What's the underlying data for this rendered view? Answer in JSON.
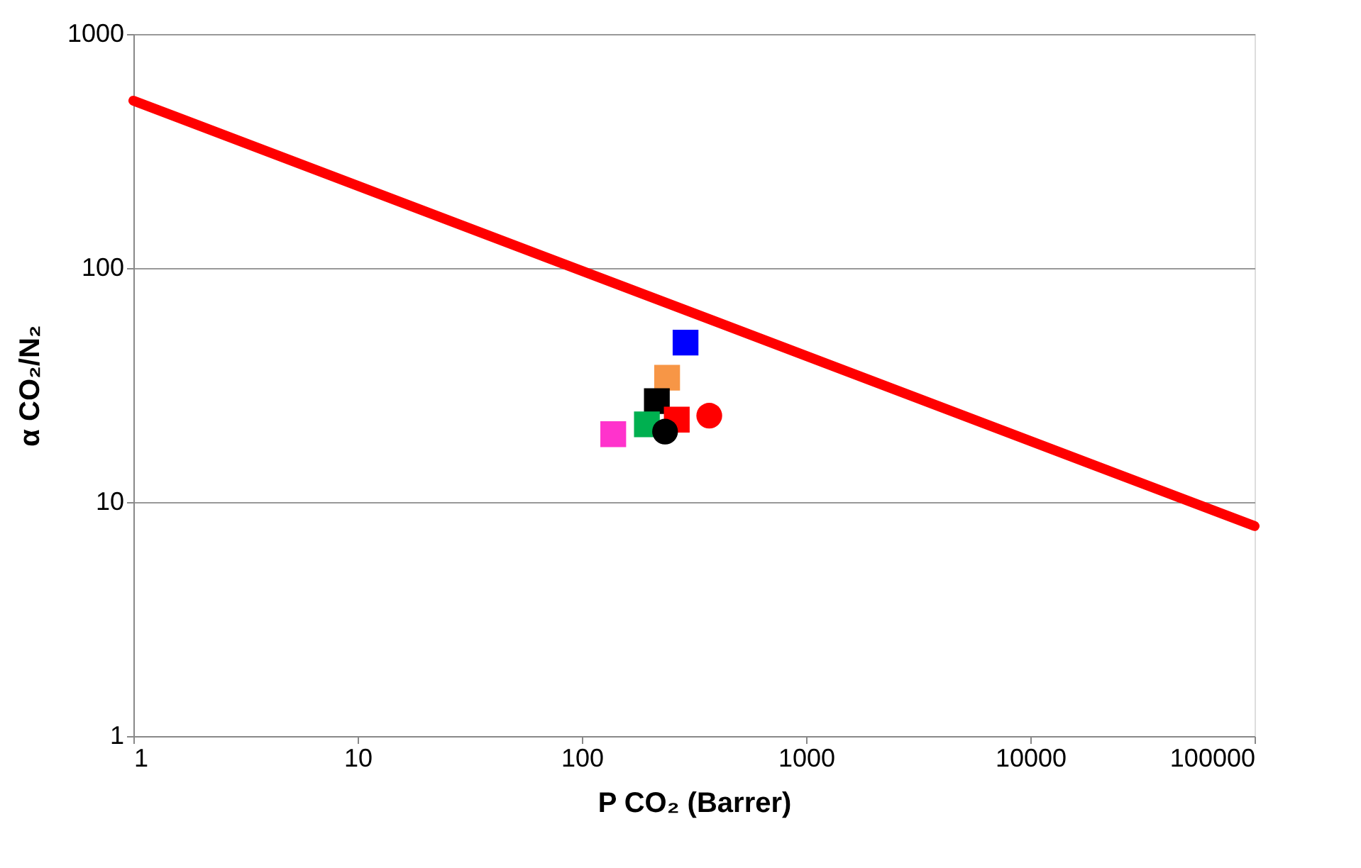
{
  "chart_data": {
    "type": "scatter",
    "xlabel": "P CO₂ (Barrer)",
    "ylabel": "α CO₂/N₂",
    "log": "xy",
    "grid": "y",
    "xlim": [
      1,
      100000
    ],
    "ylim": [
      1,
      1000
    ],
    "xticks": [
      1,
      10,
      100,
      1000,
      10000,
      100000
    ],
    "yticks": [
      1,
      10,
      100,
      1000
    ],
    "series": [
      {
        "type": "line",
        "color": "#ff0000",
        "x": [
          1,
          100000
        ],
        "values": [
          519,
          7.9
        ]
      },
      {
        "marker": "square",
        "color": "#0000ff",
        "x": [
          290
        ],
        "values": [
          48
        ]
      },
      {
        "marker": "square",
        "color": "#f79646",
        "x": [
          240
        ],
        "values": [
          34
        ]
      },
      {
        "marker": "square",
        "color": "#000000",
        "x": [
          216
        ],
        "values": [
          27
        ]
      },
      {
        "marker": "square",
        "color": "#ff0000",
        "x": [
          265
        ],
        "values": [
          22.5
        ]
      },
      {
        "marker": "circle",
        "color": "#ff0000",
        "x": [
          370
        ],
        "values": [
          23.4
        ]
      },
      {
        "marker": "square",
        "color": "#00b050",
        "x": [
          195
        ],
        "values": [
          21.5
        ]
      },
      {
        "marker": "square",
        "color": "#ff33cc",
        "x": [
          138
        ],
        "values": [
          19.5
        ]
      },
      {
        "marker": "circle",
        "color": "#000000",
        "x": [
          235
        ],
        "values": [
          20
        ]
      }
    ]
  }
}
